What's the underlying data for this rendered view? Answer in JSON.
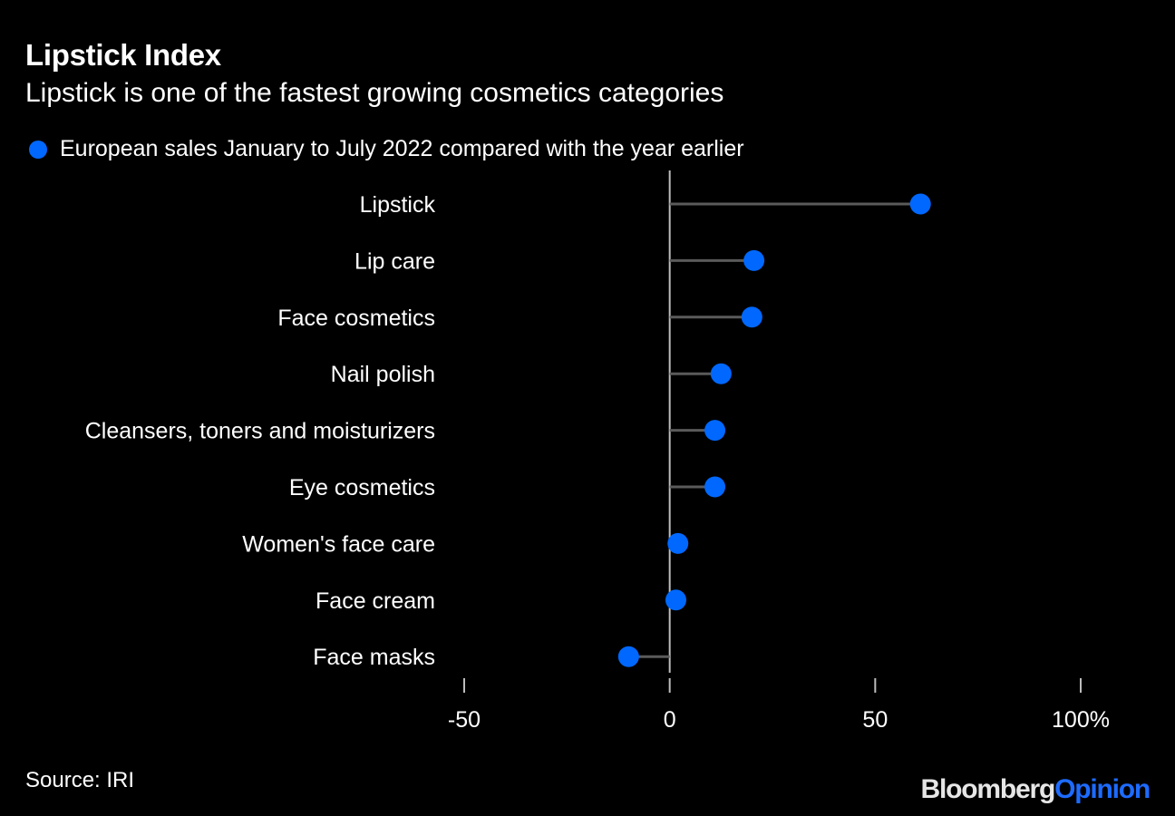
{
  "title": "Lipstick Index",
  "subtitle": "Lipstick is one of the fastest growing cosmetics categories",
  "legend": {
    "label": "European sales January to July 2022 compared with the year earlier"
  },
  "source": "Source: IRI",
  "brand": {
    "part1": "Bloomberg",
    "part2": "Opinion"
  },
  "colors": {
    "background": "#000000",
    "dot": "#0068ff",
    "stem": "#5a5a5a",
    "axis": "#bdbdbd",
    "text": "#ffffff"
  },
  "chart_data": {
    "type": "dot",
    "title": "Lipstick Index",
    "series": [
      {
        "name": "European sales January to July 2022 compared with the year earlier",
        "values": [
          61,
          20.5,
          20,
          12.5,
          11,
          11,
          2,
          1.5,
          -10
        ]
      }
    ],
    "categories": [
      "Lipstick",
      "Lip care",
      "Face cosmetics",
      "Nail polish",
      "Cleansers, toners and moisturizers",
      "Eye cosmetics",
      "Women's face care",
      "Face cream",
      "Face masks"
    ],
    "xlim": [
      -50,
      100
    ],
    "xticks": [
      -50,
      0,
      50,
      100
    ],
    "xtick_labels": [
      "-50",
      "0",
      "50",
      "100%"
    ],
    "xlabel": "",
    "ylabel": "",
    "grid": false
  }
}
